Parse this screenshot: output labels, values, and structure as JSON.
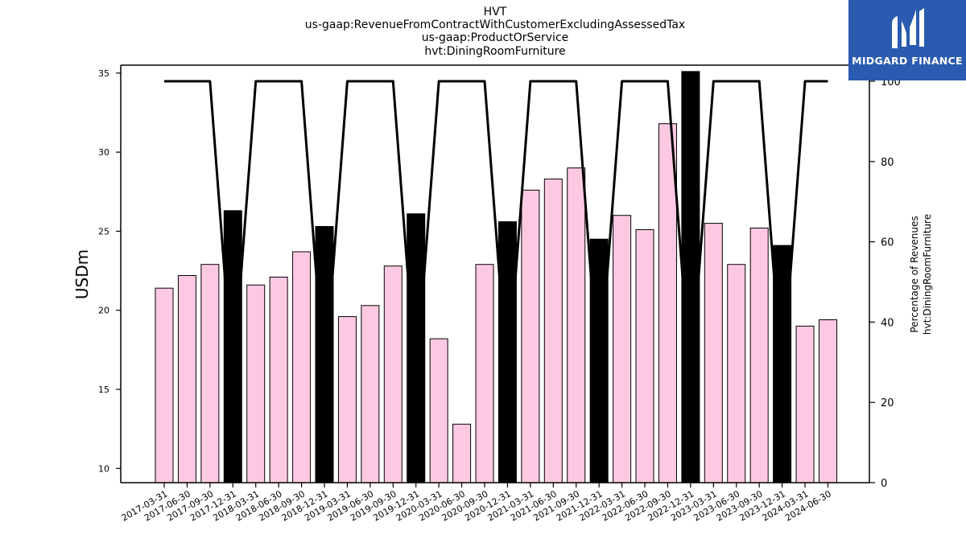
{
  "title_lines": [
    "HVT",
    "us-gaap:RevenueFromContractWithCustomerExcludingAssessedTax",
    "us-gaap:ProductOrService",
    "hvt:DiningRoomFurniture"
  ],
  "logo": {
    "brand": "MIDGARD FINANCE",
    "icon": "midgard-m-logo-icon",
    "color": "#2a5bb0"
  },
  "chart_data": {
    "type": "bar",
    "title": "HVT",
    "ylabel": "USDm",
    "y2label": [
      "Percentage of Revenues",
      "hvt:DiningRoomFurniture"
    ],
    "ylim": [
      9.1,
      35.5
    ],
    "y2lim": [
      0,
      104
    ],
    "yticks": [
      10,
      15,
      20,
      25,
      30,
      35
    ],
    "y2ticks": [
      0,
      20,
      40,
      60,
      80,
      100
    ],
    "categories": [
      "2017-03-31",
      "2017-06-30",
      "2017-09-30",
      "2017-12-31",
      "2018-03-31",
      "2018-06-30",
      "2018-09-30",
      "2018-12-31",
      "2019-03-31",
      "2019-06-30",
      "2019-09-30",
      "2019-12-31",
      "2020-03-31",
      "2020-06-30",
      "2020-09-30",
      "2020-12-31",
      "2021-03-31",
      "2021-06-30",
      "2021-09-30",
      "2021-12-31",
      "2022-03-31",
      "2022-06-30",
      "2022-09-30",
      "2022-12-31",
      "2023-03-31",
      "2023-06-30",
      "2023-09-30",
      "2023-12-31",
      "2024-03-31",
      "2024-06-30"
    ],
    "values": [
      21.4,
      22.2,
      22.9,
      26.3,
      21.6,
      22.1,
      23.7,
      25.3,
      19.6,
      20.3,
      22.8,
      26.1,
      18.2,
      12.8,
      22.9,
      25.6,
      27.6,
      28.3,
      29.0,
      24.5,
      26.0,
      25.1,
      31.8,
      35.1,
      25.5,
      22.9,
      25.2,
      24.1,
      19.0,
      19.4
    ],
    "bar_colors": {
      "quarter": "#fdc9e2",
      "year_end": "#000000"
    },
    "highlighted": [
      false,
      false,
      false,
      true,
      false,
      false,
      false,
      true,
      false,
      false,
      false,
      true,
      false,
      false,
      false,
      true,
      false,
      false,
      false,
      true,
      false,
      false,
      false,
      true,
      false,
      false,
      false,
      true,
      false,
      false
    ],
    "series": [
      {
        "values": [
          100,
          100,
          100,
          25,
          100,
          100,
          100,
          25,
          100,
          100,
          100,
          25,
          100,
          100,
          100,
          25,
          100,
          100,
          100,
          25,
          100,
          100,
          100,
          25,
          100,
          100,
          100,
          25,
          100,
          100
        ],
        "axis": "right",
        "color": "#000000"
      }
    ],
    "grid": false,
    "legend": "none"
  }
}
